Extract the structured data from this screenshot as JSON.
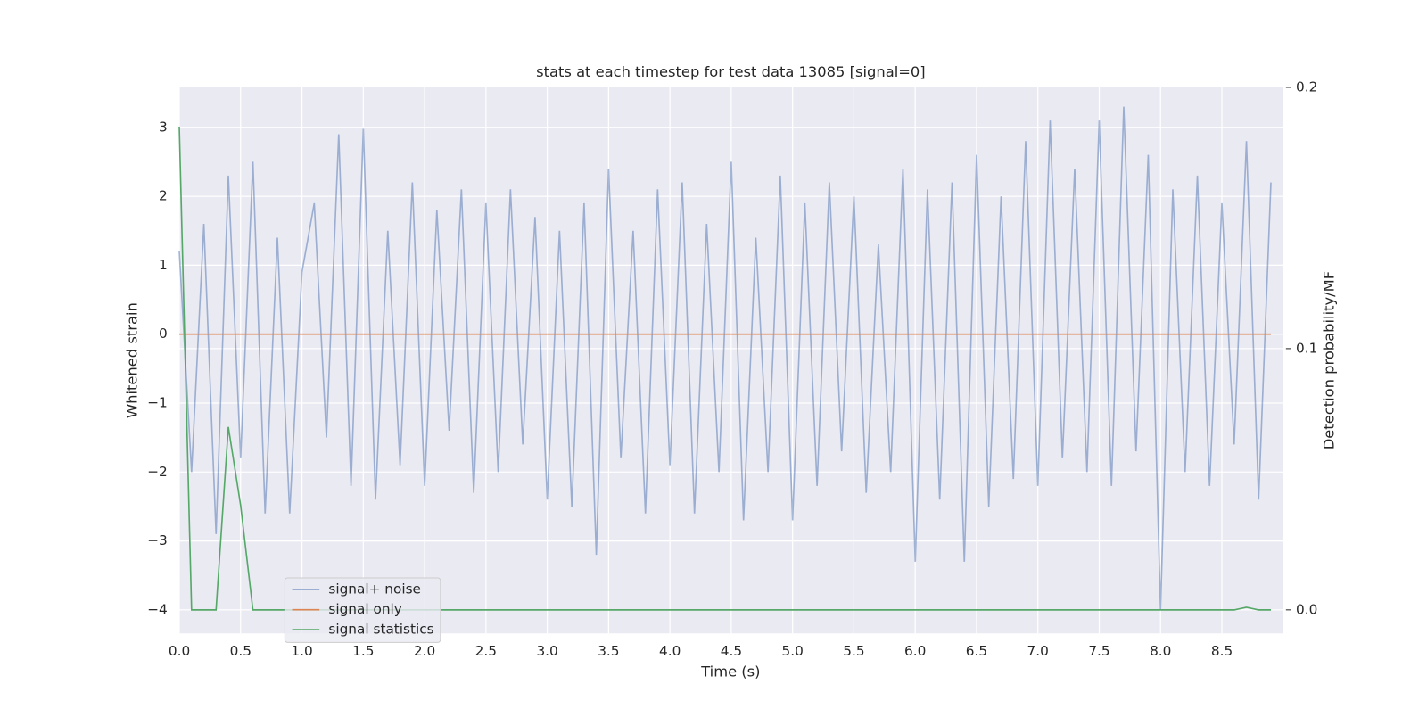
{
  "chart_data": {
    "type": "line",
    "title": "stats at each timestep for test data 13085 [signal=0]",
    "x_label": "Time (s)",
    "y_label": "Whitened strain",
    "y2_label": "Detection probability/MF",
    "x": [
      0,
      0.1,
      0.2,
      0.3,
      0.4,
      0.5,
      0.6,
      0.7,
      0.8,
      0.9,
      1,
      1.1,
      1.2,
      1.3,
      1.4,
      1.5,
      1.6,
      1.7,
      1.8,
      1.9,
      2,
      2.1,
      2.2,
      2.3,
      2.4,
      2.5,
      2.6,
      2.7,
      2.8,
      2.9,
      3,
      3.1,
      3.2,
      3.3,
      3.4,
      3.5,
      3.6,
      3.7,
      3.8,
      3.9,
      4,
      4.1,
      4.2,
      4.3,
      4.4,
      4.5,
      4.6,
      4.7,
      4.8,
      4.9,
      5,
      5.1,
      5.2,
      5.3,
      5.4,
      5.5,
      5.6,
      5.7,
      5.8,
      5.9,
      6,
      6.1,
      6.2,
      6.3,
      6.4,
      6.5,
      6.6,
      6.7,
      6.8,
      6.9,
      7,
      7.1,
      7.2,
      7.3,
      7.4,
      7.5,
      7.6,
      7.7,
      7.8,
      7.9,
      8,
      8.1,
      8.2,
      8.3,
      8.4,
      8.5,
      8.6,
      8.7,
      8.8,
      8.9
    ],
    "series": [
      {
        "name": "signal+ noise",
        "color": "#4c72b0",
        "values": [
          1.2,
          -2.0,
          1.6,
          -2.9,
          2.3,
          -1.8,
          2.5,
          -2.6,
          1.4,
          -2.6,
          0.9,
          1.9,
          -1.5,
          2.9,
          -2.2,
          2.98,
          -2.4,
          1.5,
          -1.9,
          2.2,
          -2.2,
          1.8,
          -1.4,
          2.1,
          -2.3,
          1.9,
          -2.0,
          2.1,
          -1.6,
          1.7,
          -2.4,
          1.5,
          -2.5,
          1.9,
          -3.2,
          2.4,
          -1.8,
          1.5,
          -2.6,
          2.1,
          -1.9,
          2.2,
          -2.6,
          1.6,
          -2.0,
          2.5,
          -2.7,
          1.4,
          -2.0,
          2.3,
          -2.7,
          1.9,
          -2.2,
          2.2,
          -1.7,
          2.0,
          -2.3,
          1.3,
          -2.0,
          2.4,
          -3.3,
          2.1,
          -2.4,
          2.2,
          -3.3,
          2.6,
          -2.5,
          2.0,
          -2.1,
          2.8,
          -2.2,
          3.1,
          -1.8,
          2.4,
          -2.0,
          3.1,
          -2.2,
          3.3,
          -1.7,
          2.6,
          -4.0,
          2.1,
          -2.0,
          2.3,
          -2.2,
          1.9,
          -1.6,
          2.8,
          -2.4,
          2.2
        ]
      },
      {
        "name": "signal only",
        "color": "#dd8452",
        "values": [
          0,
          0,
          0,
          0,
          0,
          0,
          0,
          0,
          0,
          0,
          0,
          0,
          0,
          0,
          0,
          0,
          0,
          0,
          0,
          0,
          0,
          0,
          0,
          0,
          0,
          0,
          0,
          0,
          0,
          0,
          0,
          0,
          0,
          0,
          0,
          0,
          0,
          0,
          0,
          0,
          0,
          0,
          0,
          0,
          0,
          0,
          0,
          0,
          0,
          0,
          0,
          0,
          0,
          0,
          0,
          0,
          0,
          0,
          0,
          0,
          0,
          0,
          0,
          0,
          0,
          0,
          0,
          0,
          0,
          0,
          0,
          0,
          0,
          0,
          0,
          0,
          0,
          0,
          0,
          0,
          0,
          0,
          0,
          0,
          0,
          0,
          0,
          0,
          0,
          0
        ]
      },
      {
        "name": "signal statistics",
        "color": "#55a868",
        "axis": "y2",
        "values": [
          0.185,
          0,
          0,
          0,
          0.07,
          0.04,
          0,
          0,
          0,
          0,
          0,
          0,
          0,
          0,
          0,
          0,
          0,
          0,
          0,
          0,
          0,
          0,
          0,
          0,
          0,
          0,
          0,
          0,
          0,
          0,
          0,
          0,
          0,
          0,
          0,
          0,
          0,
          0,
          0,
          0,
          0,
          0,
          0,
          0,
          0,
          0,
          0,
          0,
          0,
          0,
          0,
          0,
          0,
          0,
          0,
          0,
          0,
          0,
          0,
          0,
          0,
          0,
          0,
          0,
          0,
          0,
          0,
          0,
          0,
          0,
          0,
          0,
          0,
          0,
          0,
          0,
          0,
          0,
          0,
          0,
          0,
          0,
          0,
          0,
          0,
          0,
          0,
          0.001,
          0,
          0
        ]
      }
    ],
    "xlim": [
      0,
      9.0
    ],
    "xticks": [
      {
        "value": 0,
        "label": "0.0"
      },
      0.5,
      {
        "value": 1,
        "label": "1.0"
      },
      1.5,
      {
        "value": 2,
        "label": "2.0"
      },
      2.5,
      {
        "value": 3,
        "label": "3.0"
      },
      3.5,
      {
        "value": 4,
        "label": "4.0"
      },
      4.5,
      {
        "value": 5,
        "label": "5.0"
      },
      5.5,
      {
        "value": 6,
        "label": "6.0"
      },
      6.5,
      {
        "value": 7,
        "label": "7.0"
      },
      7.5,
      {
        "value": 8,
        "label": "8.0"
      },
      8.5
    ],
    "ylim": [
      -4.34,
      3.58
    ],
    "yticks": [
      {
        "value": -4,
        "label": "−4"
      },
      {
        "value": -3,
        "label": "−3"
      },
      {
        "value": -2,
        "label": "−2"
      },
      {
        "value": -1,
        "label": "−1"
      },
      0,
      1,
      2,
      3
    ],
    "y2lim": [
      -0.009,
      0.2
    ],
    "y2ticks": [
      {
        "value": 0,
        "label": "0.0"
      },
      {
        "value": 0.1,
        "label": "0.1"
      },
      {
        "value": 0.2,
        "label": "0.2"
      }
    ],
    "grid": true,
    "legend": "lower left"
  }
}
